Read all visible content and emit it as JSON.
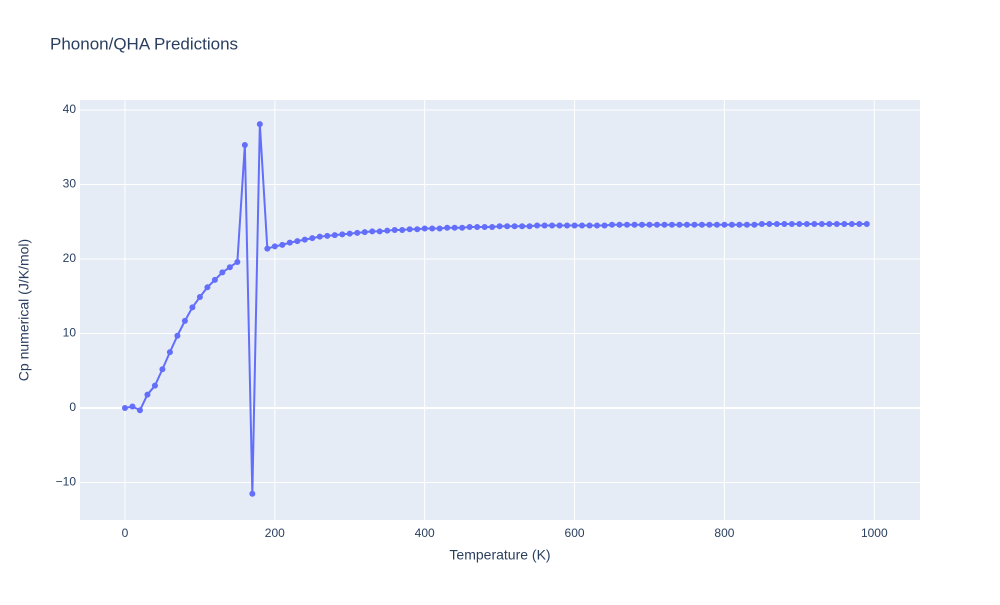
{
  "chart_data": {
    "type": "line",
    "title": "Phonon/QHA Predictions",
    "x_label": "Temperature (K)",
    "y_label": "Cp numerical (J/K/mol)",
    "x": [
      0,
      10,
      20,
      30,
      40,
      50,
      60,
      70,
      80,
      90,
      100,
      110,
      120,
      130,
      140,
      150,
      160,
      170,
      180,
      190,
      200,
      210,
      220,
      230,
      240,
      250,
      260,
      270,
      280,
      290,
      300,
      310,
      320,
      330,
      340,
      350,
      360,
      370,
      380,
      390,
      400,
      410,
      420,
      430,
      440,
      450,
      460,
      470,
      480,
      490,
      500,
      510,
      520,
      530,
      540,
      550,
      560,
      570,
      580,
      590,
      600,
      610,
      620,
      630,
      640,
      650,
      660,
      670,
      680,
      690,
      700,
      710,
      720,
      730,
      740,
      750,
      760,
      770,
      780,
      790,
      800,
      810,
      820,
      830,
      840,
      850,
      860,
      870,
      880,
      890,
      900,
      910,
      920,
      930,
      940,
      950,
      960,
      970,
      980,
      990
    ],
    "series": [
      {
        "name": "Cp numerical",
        "color": "#636efa",
        "values": [
          0,
          0.2,
          -0.3,
          1.8,
          3.0,
          5.2,
          7.5,
          9.7,
          11.7,
          13.5,
          14.9,
          16.2,
          17.2,
          18.2,
          18.9,
          19.6,
          35.3,
          -11.5,
          38.1,
          21.4,
          21.7,
          21.9,
          22.2,
          22.4,
          22.6,
          22.8,
          23.0,
          23.1,
          23.2,
          23.3,
          23.4,
          23.5,
          23.6,
          23.7,
          23.7,
          23.8,
          23.9,
          23.9,
          24.0,
          24.0,
          24.1,
          24.1,
          24.1,
          24.2,
          24.2,
          24.2,
          24.3,
          24.3,
          24.3,
          24.3,
          24.4,
          24.4,
          24.4,
          24.4,
          24.4,
          24.5,
          24.5,
          24.5,
          24.5,
          24.5,
          24.5,
          24.5,
          24.5,
          24.5,
          24.5,
          24.6,
          24.6,
          24.6,
          24.6,
          24.6,
          24.6,
          24.6,
          24.6,
          24.6,
          24.6,
          24.6,
          24.6,
          24.6,
          24.6,
          24.6,
          24.6,
          24.6,
          24.6,
          24.6,
          24.6,
          24.7,
          24.7,
          24.7,
          24.7,
          24.7,
          24.7,
          24.7,
          24.7,
          24.7,
          24.7,
          24.7,
          24.7,
          24.7,
          24.7,
          24.7
        ]
      }
    ],
    "xlim": [
      -60,
      1061
    ],
    "ylim": [
      -15.03,
      41.34
    ],
    "xticks": [
      0,
      200,
      400,
      600,
      800,
      1000
    ],
    "yticks": [
      {
        "value": -10,
        "label": "−10"
      },
      0,
      10,
      20,
      30,
      40
    ],
    "grid": true
  }
}
